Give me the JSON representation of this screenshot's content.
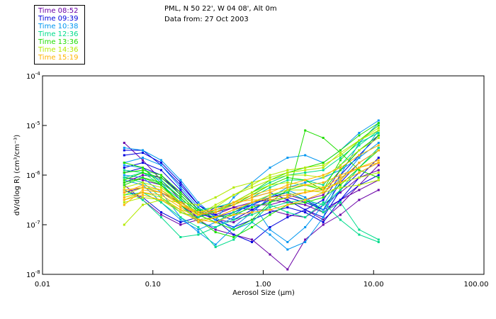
{
  "header": {
    "line1": "PML, N 50 22', W 04 08', Alt 0m",
    "line2": "Data from: 27 Oct 2003"
  },
  "legend": [
    {
      "label": "Time 08:52",
      "color": "#6a00a8"
    },
    {
      "label": "Time 09:39",
      "color": "#0000dd"
    },
    {
      "label": "Time 10:38",
      "color": "#0096f0"
    },
    {
      "label": "Time 12:36",
      "color": "#00dc8c"
    },
    {
      "label": "Time 13:36",
      "color": "#1ede00"
    },
    {
      "label": "Time 14:36",
      "color": "#b4ea00"
    },
    {
      "label": "Time 15:19",
      "color": "#ffb400"
    }
  ],
  "chart_data": {
    "type": "line",
    "title": "PML, N 50 22', W 04 08', Alt 0m",
    "subtitle": "Data from: 27 Oct 2003",
    "xlabel": "Aerosol Size (μm)",
    "ylabel": "dV/d(log R) (cm³/cm⁻³)",
    "xscale": "log",
    "yscale": "log",
    "xlim": [
      0.01,
      100
    ],
    "ylim": [
      1e-08,
      0.0001
    ],
    "x_ticks": [
      {
        "value": 0.01,
        "label": "0.01"
      },
      {
        "value": 0.1,
        "label": "0.10"
      },
      {
        "value": 1,
        "label": "1.00"
      },
      {
        "value": 10,
        "label": "10.00"
      },
      {
        "value": 100,
        "label": "100.00"
      }
    ],
    "y_ticks": [
      {
        "value": -4,
        "base": "10",
        "exp": "-4"
      },
      {
        "value": -5,
        "base": "10",
        "exp": "-5"
      },
      {
        "value": -6,
        "base": "10",
        "exp": "-6"
      },
      {
        "value": -7,
        "base": "10",
        "exp": "-7"
      },
      {
        "value": -8,
        "base": "10",
        "exp": "-8"
      }
    ],
    "legend_position": "top-left",
    "x": [
      0.055,
      0.081,
      0.119,
      0.178,
      0.258,
      0.37,
      0.54,
      0.79,
      1.15,
      1.66,
      2.4,
      3.5,
      5.0,
      7.4,
      11.1
    ],
    "y_units": "log10 dV/d(log R)",
    "series": [
      {
        "time": "08:52",
        "values": [
          -5.35,
          -5.7,
          -6.1,
          -6.5,
          -6.9,
          -7.1,
          -7.2,
          -7.3,
          -7.6,
          -7.9,
          -7.3,
          -7.0,
          -6.8,
          -6.5,
          -6.3
        ]
      },
      {
        "time": "08:52",
        "values": [
          -6.35,
          -6.25,
          -6.35,
          -6.55,
          -6.75,
          -6.8,
          -6.65,
          -6.55,
          -6.5,
          -6.55,
          -6.6,
          -6.75,
          -6.5,
          -6.3,
          -6.1
        ]
      },
      {
        "time": "08:52",
        "values": [
          -6.2,
          -6.5,
          -6.8,
          -7.0,
          -6.9,
          -6.85,
          -6.7,
          -6.6,
          -6.6,
          -6.5,
          -6.7,
          -6.9,
          -6.6,
          -6.2,
          -5.8
        ]
      },
      {
        "time": "08:52",
        "values": [
          -6.05,
          -6.1,
          -6.2,
          -6.6,
          -6.85,
          -6.75,
          -6.65,
          -6.7,
          -6.7,
          -6.8,
          -6.85,
          -6.6,
          -6.35,
          -6.05,
          -5.9
        ]
      },
      {
        "time": "08:52",
        "values": [
          -6.15,
          -6.0,
          -6.05,
          -6.35,
          -6.7,
          -6.9,
          -6.95,
          -6.75,
          -6.45,
          -6.4,
          -6.5,
          -6.4,
          -5.9,
          -5.5,
          -5.2
        ]
      },
      {
        "time": "09:39",
        "values": [
          -5.5,
          -5.5,
          -5.8,
          -6.2,
          -6.6,
          -6.8,
          -6.9,
          -6.7,
          -6.5,
          -6.45,
          -6.55,
          -6.7,
          -6.5,
          -6.2,
          -6.0
        ]
      },
      {
        "time": "09:39",
        "values": [
          -5.6,
          -5.55,
          -5.75,
          -6.15,
          -6.6,
          -6.85,
          -6.75,
          -6.6,
          -6.45,
          -6.35,
          -6.5,
          -6.7,
          -6.15,
          -5.75,
          -5.5
        ]
      },
      {
        "time": "09:39",
        "values": [
          -5.85,
          -5.75,
          -5.9,
          -6.3,
          -6.7,
          -6.9,
          -7.2,
          -7.35,
          -7.05,
          -6.85,
          -6.7,
          -6.5,
          -6.0,
          -5.6,
          -5.2
        ]
      },
      {
        "time": "09:39",
        "values": [
          -6.3,
          -6.45,
          -6.75,
          -6.95,
          -6.85,
          -6.65,
          -6.6,
          -6.45,
          -6.35,
          -6.5,
          -6.7,
          -6.85,
          -6.3,
          -5.95,
          -5.75
        ]
      },
      {
        "time": "09:39",
        "values": [
          -5.95,
          -5.85,
          -6.0,
          -6.4,
          -6.75,
          -6.9,
          -7.05,
          -6.9,
          -6.75,
          -6.65,
          -6.75,
          -6.95,
          -6.5,
          -6.05,
          -5.65
        ]
      },
      {
        "time": "10:38",
        "values": [
          -5.45,
          -5.5,
          -5.7,
          -6.1,
          -6.55,
          -6.85,
          -7.1,
          -6.95,
          -7.2,
          -7.5,
          -7.35,
          -6.85,
          -6.0,
          -5.35,
          -4.95
        ]
      },
      {
        "time": "10:38",
        "values": [
          -5.8,
          -5.85,
          -6.15,
          -6.6,
          -6.95,
          -7.05,
          -6.85,
          -6.6,
          -6.4,
          -6.3,
          -6.45,
          -6.7,
          -6.3,
          -5.85,
          -5.45
        ]
      },
      {
        "time": "10:38",
        "values": [
          -6.0,
          -6.05,
          -6.35,
          -6.85,
          -7.15,
          -7.4,
          -7.05,
          -6.75,
          -6.45,
          -6.25,
          -6.15,
          -6.05,
          -5.9,
          -5.65,
          -5.35
        ]
      },
      {
        "time": "10:38",
        "values": [
          -6.1,
          -6.2,
          -6.55,
          -6.9,
          -7.1,
          -6.95,
          -6.8,
          -6.55,
          -7.1,
          -7.35,
          -7.05,
          -6.6,
          -6.1,
          -5.65,
          -5.1
        ]
      },
      {
        "time": "10:38",
        "values": [
          -5.75,
          -5.65,
          -5.8,
          -6.25,
          -6.65,
          -6.9,
          -6.45,
          -6.15,
          -5.85,
          -5.65,
          -5.6,
          -5.75,
          -5.5,
          -5.15,
          -4.9
        ]
      },
      {
        "time": "12:36",
        "values": [
          -6.4,
          -6.35,
          -6.55,
          -6.85,
          -7.05,
          -7.45,
          -7.3,
          -6.95,
          -6.6,
          -6.75,
          -6.85,
          -6.55,
          -6.9,
          -7.2,
          -7.35
        ]
      },
      {
        "time": "12:36",
        "values": [
          -6.05,
          -5.95,
          -6.1,
          -6.45,
          -6.8,
          -6.95,
          -6.75,
          -6.55,
          -6.4,
          -6.35,
          -6.5,
          -6.75,
          -6.55,
          -7.1,
          -7.3
        ]
      },
      {
        "time": "12:36",
        "values": [
          -5.9,
          -5.95,
          -6.2,
          -6.5,
          -6.7,
          -6.65,
          -6.55,
          -6.35,
          -6.15,
          -6.0,
          -5.95,
          -5.9,
          -5.65,
          -5.35,
          -5.15
        ]
      },
      {
        "time": "12:36",
        "values": [
          -6.05,
          -6.15,
          -6.45,
          -6.75,
          -6.85,
          -6.7,
          -6.6,
          -6.45,
          -6.25,
          -6.1,
          -6.1,
          -6.2,
          -5.8,
          -5.4,
          -5.1
        ]
      },
      {
        "time": "12:36",
        "values": [
          -6.3,
          -6.5,
          -6.85,
          -7.25,
          -7.2,
          -7.05,
          -6.9,
          -6.8,
          -6.65,
          -6.55,
          -6.5,
          -6.6,
          -6.3,
          -5.85,
          -5.45
        ]
      },
      {
        "time": "13:36",
        "values": [
          -5.75,
          -5.85,
          -6.2,
          -6.6,
          -6.9,
          -7.15,
          -7.25,
          -7.05,
          -6.8,
          -6.6,
          -6.55,
          -6.45,
          -6.2,
          -5.85,
          -5.5
        ]
      },
      {
        "time": "13:36",
        "values": [
          -6.15,
          -6.05,
          -6.2,
          -6.55,
          -6.8,
          -6.95,
          -7.1,
          -6.9,
          -6.55,
          -6.3,
          -6.2,
          -6.3,
          -5.9,
          -5.5,
          -5.2
        ]
      },
      {
        "time": "13:36",
        "values": [
          -5.95,
          -5.9,
          -6.0,
          -6.35,
          -6.7,
          -6.75,
          -6.55,
          -6.35,
          -6.1,
          -5.95,
          -5.85,
          -5.75,
          -5.5,
          -5.2,
          -4.95
        ]
      },
      {
        "time": "13:36",
        "values": [
          -6.1,
          -5.95,
          -6.05,
          -6.4,
          -6.75,
          -6.85,
          -6.8,
          -6.65,
          -6.55,
          -6.45,
          -5.1,
          -5.25,
          -5.55,
          -5.9,
          -6.05
        ]
      },
      {
        "time": "13:36",
        "values": [
          -6.2,
          -6.05,
          -6.15,
          -6.45,
          -6.8,
          -6.75,
          -6.6,
          -6.4,
          -6.2,
          -6.05,
          -6.1,
          -6.3,
          -5.7,
          -5.3,
          -5.0
        ]
      },
      {
        "time": "14:36",
        "values": [
          -7.0,
          -6.6,
          -6.5,
          -6.55,
          -6.6,
          -6.45,
          -6.25,
          -6.15,
          -6.05,
          -5.95,
          -5.9,
          -5.85,
          -5.55,
          -5.3,
          -5.1
        ]
      },
      {
        "time": "14:36",
        "values": [
          -6.25,
          -6.15,
          -6.25,
          -6.55,
          -6.75,
          -6.65,
          -6.4,
          -6.2,
          -6.0,
          -5.9,
          -5.85,
          -5.8,
          -5.6,
          -5.3,
          -5.05
        ]
      },
      {
        "time": "14:36",
        "values": [
          -6.5,
          -6.35,
          -6.45,
          -6.7,
          -6.8,
          -6.75,
          -6.55,
          -6.35,
          -6.2,
          -6.15,
          -6.2,
          -6.25,
          -6.15,
          -6.05,
          -5.95
        ]
      },
      {
        "time": "14:36",
        "values": [
          -6.4,
          -6.25,
          -6.3,
          -6.6,
          -6.8,
          -6.6,
          -6.4,
          -6.25,
          -6.1,
          -6.0,
          -6.0,
          -6.05,
          -5.8,
          -5.5,
          -5.25
        ]
      },
      {
        "time": "14:36",
        "values": [
          -6.55,
          -6.45,
          -6.5,
          -6.75,
          -6.9,
          -6.85,
          -6.7,
          -6.55,
          -6.4,
          -6.3,
          -6.3,
          -6.35,
          -6.25,
          -6.2,
          -6.1
        ]
      },
      {
        "time": "15:19",
        "values": [
          -6.3,
          -6.25,
          -6.35,
          -6.6,
          -6.75,
          -6.7,
          -6.55,
          -6.4,
          -6.3,
          -6.25,
          -6.2,
          -6.15,
          -6.0,
          -5.85,
          -5.75
        ]
      },
      {
        "time": "15:19",
        "values": [
          -6.45,
          -6.35,
          -6.4,
          -6.65,
          -6.9,
          -6.95,
          -6.8,
          -6.75,
          -6.7,
          -6.6,
          -6.5,
          -6.35,
          -6.1,
          -5.75,
          -5.5
        ]
      },
      {
        "time": "15:19",
        "values": [
          -6.35,
          -6.2,
          -6.3,
          -6.55,
          -6.8,
          -6.75,
          -6.6,
          -6.45,
          -6.35,
          -6.2,
          -6.1,
          -6.0,
          -5.85,
          -5.6,
          -5.4
        ]
      },
      {
        "time": "15:19",
        "values": [
          -6.5,
          -6.4,
          -6.5,
          -6.7,
          -6.95,
          -6.85,
          -6.7,
          -6.55,
          -6.45,
          -6.4,
          -6.35,
          -6.3,
          -6.15,
          -5.95,
          -5.75
        ]
      },
      {
        "time": "15:19",
        "values": [
          -6.6,
          -6.3,
          -6.35,
          -6.6,
          -6.8,
          -6.7,
          -6.55,
          -6.5,
          -6.5,
          -6.45,
          -6.35,
          -6.25,
          -6.05,
          -5.85,
          -5.7
        ]
      }
    ]
  }
}
